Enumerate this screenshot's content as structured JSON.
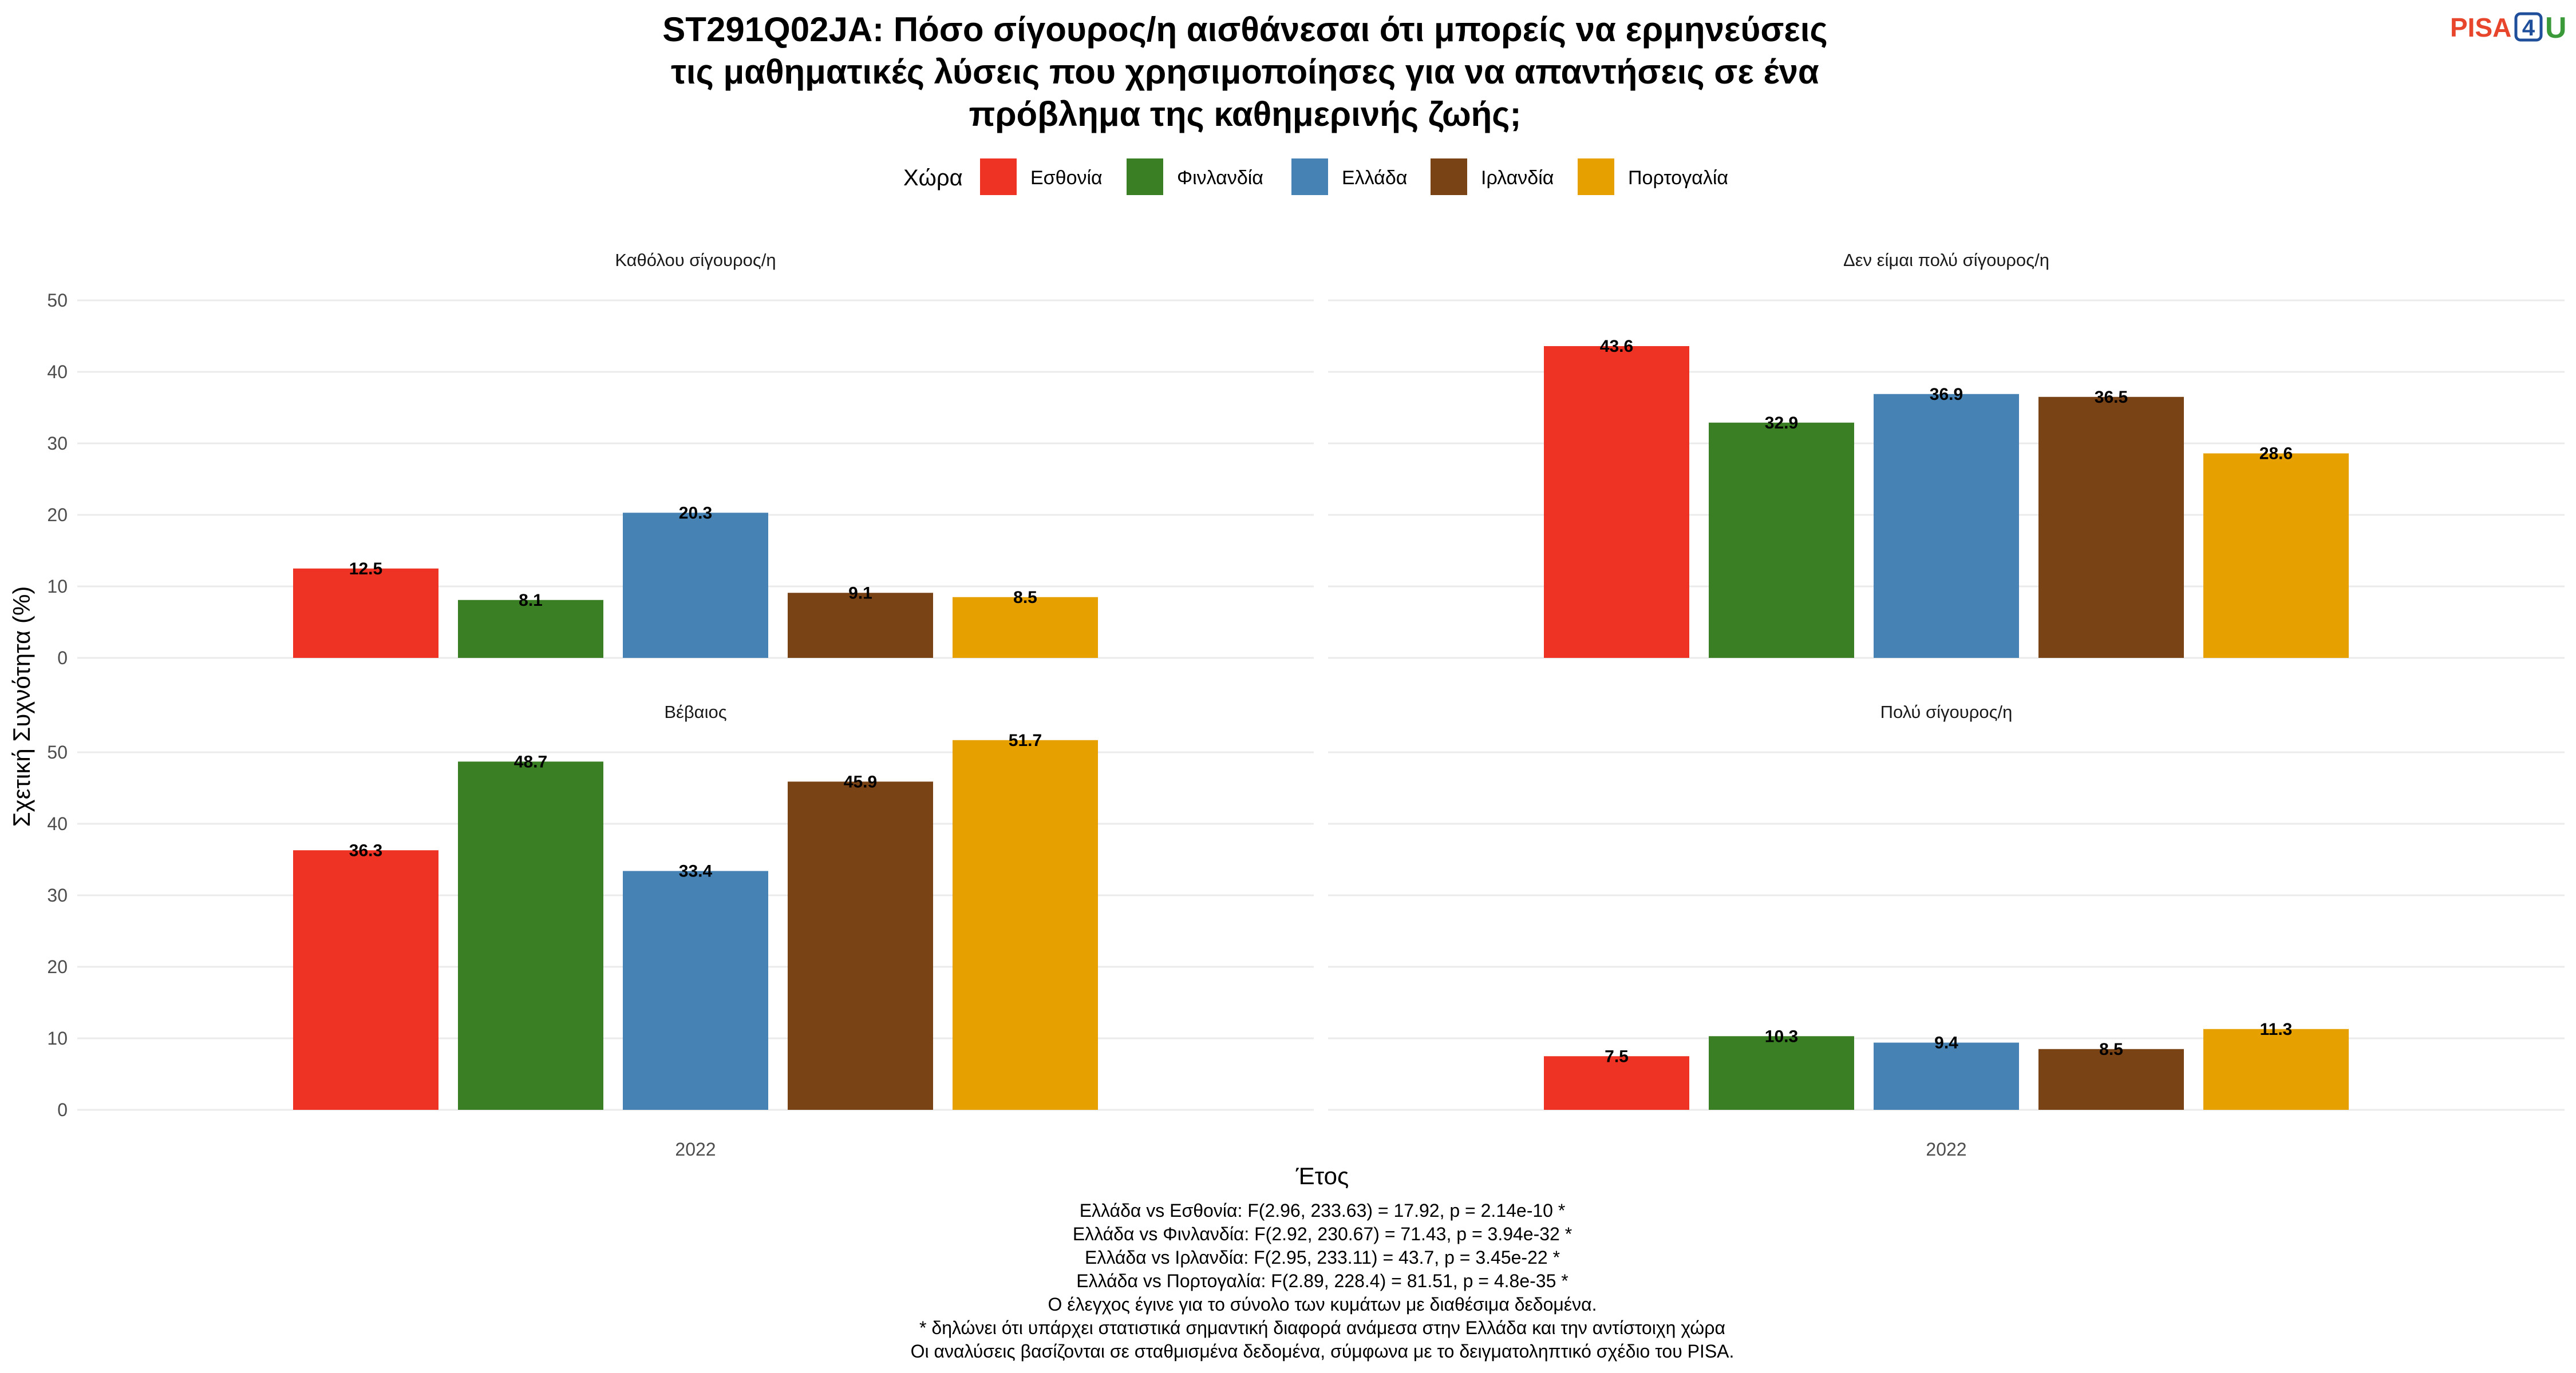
{
  "title_lines": [
    "ST291Q02JA: Πόσο σίγουρος/η αισθάνεσαι ότι μπορείς να ερμηνεύσεις",
    "τις μαθηματικές λύσεις που χρησιμοποίησες για να απαντήσεις σε ένα",
    "πρόβλημα της καθημερινής ζωής;"
  ],
  "logo": {
    "text": "PISA",
    "number": "4",
    "letter": "U",
    "colors": {
      "pisa": "#e8462c",
      "four": "#1f4e9a",
      "u": "#3a9a3a"
    }
  },
  "legend": {
    "title": "Χώρα",
    "items": [
      {
        "label": "Εσθονία",
        "color": "#EE3324"
      },
      {
        "label": "Φινλανδία",
        "color": "#3A7F24"
      },
      {
        "label": "Ελλάδα",
        "color": "#4682B4"
      },
      {
        "label": "Ιρλανδία",
        "color": "#7A4315"
      },
      {
        "label": "Πορτογαλία",
        "color": "#E6A000"
      }
    ]
  },
  "axes": {
    "ylabel": "Σχετική Συχνότητα (%)",
    "xlabel": "Έτος"
  },
  "chart_data": {
    "type": "bar",
    "facets": [
      {
        "title": "Καθόλου σίγουρος/η",
        "x": "2022",
        "values": [
          12.5,
          8.1,
          20.3,
          9.1,
          8.5
        ]
      },
      {
        "title": "Δεν είμαι πολύ σίγουρος/η",
        "x": "2022",
        "values": [
          43.6,
          32.9,
          36.9,
          36.5,
          28.6
        ]
      },
      {
        "title": "Βέβαιος",
        "x": "2022",
        "values": [
          36.3,
          48.7,
          33.4,
          45.9,
          51.7
        ]
      },
      {
        "title": "Πολύ σίγουρος/η",
        "x": "2022",
        "values": [
          7.5,
          10.3,
          9.4,
          8.5,
          11.3
        ]
      }
    ],
    "series_names": [
      "Εσθονία",
      "Φινλανδία",
      "Ελλάδα",
      "Ιρλανδία",
      "Πορτογαλία"
    ],
    "y_ticks": [
      0,
      10,
      20,
      30,
      40,
      50
    ],
    "ylim": [
      0,
      52
    ],
    "grid": true,
    "legend_position": "top"
  },
  "footnotes": [
    "Ελλάδα vs Εσθονία: F(2.96, 233.63) = 17.92, p = 2.14e-10 *",
    "Ελλάδα vs Φινλανδία: F(2.92, 230.67) = 71.43, p = 3.94e-32 *",
    "Ελλάδα vs Ιρλανδία: F(2.95, 233.11) = 43.7, p = 3.45e-22 *",
    "Ελλάδα vs Πορτογαλία: F(2.89, 228.4) = 81.51, p = 4.8e-35 *",
    "Ο έλεγχος έγινε για το σύνολο των κυμάτων με διαθέσιμα δεδομένα.",
    "* δηλώνει ότι υπάρχει στατιστικά σημαντική διαφορά ανάμεσα στην Ελλάδα και την αντίστοιχη χώρα",
    "Οι αναλύσεις βασίζονται σε σταθμισμένα δεδομένα, σύμφωνα με το δειγματοληπτικό σχέδιο του PISA."
  ]
}
